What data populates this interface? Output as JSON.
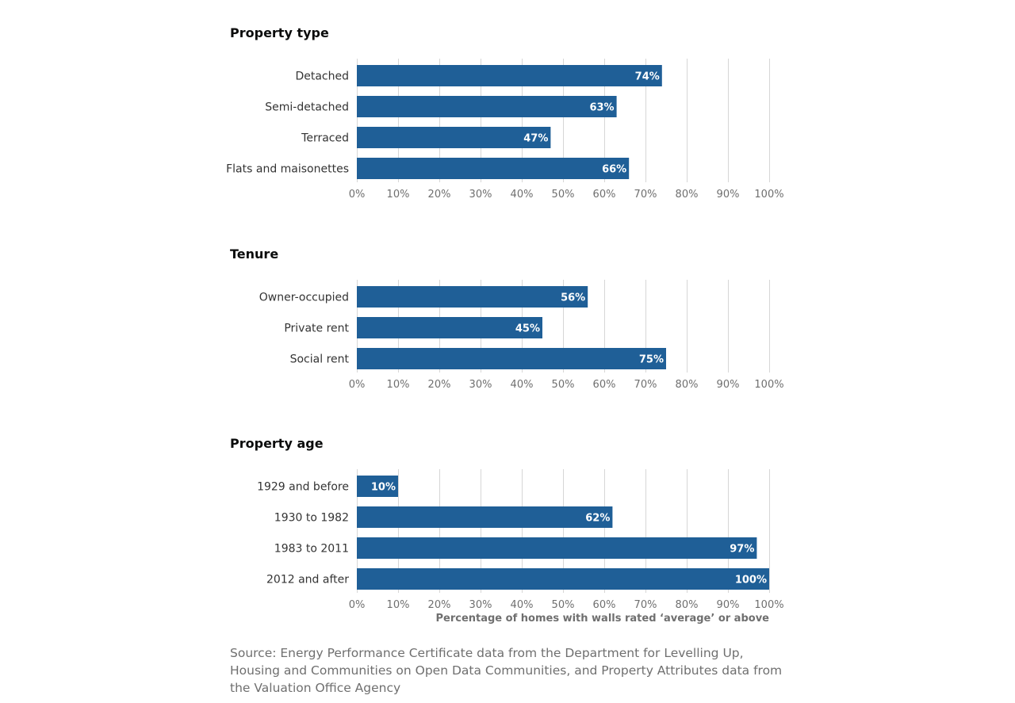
{
  "colors": {
    "bar": "#1f5f97",
    "grid": "#d6d6d6",
    "bar_label": "#ffffff",
    "category_label": "#333333",
    "tick_label": "#6f6f6f"
  },
  "chart_data": [
    {
      "type": "bar",
      "orientation": "horizontal",
      "title": "Property type",
      "categories": [
        "Detached",
        "Semi-detached",
        "Terraced",
        "Flats and maisonettes"
      ],
      "values": [
        74,
        63,
        47,
        66
      ],
      "data_labels": [
        "74%",
        "63%",
        "47%",
        "66%"
      ],
      "xlim": [
        0,
        100
      ],
      "xticks": [
        "0%",
        "10%",
        "20%",
        "30%",
        "40%",
        "50%",
        "60%",
        "70%",
        "80%",
        "90%",
        "100%"
      ],
      "grid": true,
      "xlabel": ""
    },
    {
      "type": "bar",
      "orientation": "horizontal",
      "title": "Tenure",
      "categories": [
        "Owner-occupied",
        "Private rent",
        "Social rent"
      ],
      "values": [
        56,
        45,
        75
      ],
      "data_labels": [
        "56%",
        "45%",
        "75%"
      ],
      "xlim": [
        0,
        100
      ],
      "xticks": [
        "0%",
        "10%",
        "20%",
        "30%",
        "40%",
        "50%",
        "60%",
        "70%",
        "80%",
        "90%",
        "100%"
      ],
      "grid": true,
      "xlabel": ""
    },
    {
      "type": "bar",
      "orientation": "horizontal",
      "title": "Property age",
      "categories": [
        "1929 and before",
        "1930 to 1982",
        "1983 to 2011",
        "2012 and after"
      ],
      "values": [
        10,
        62,
        97,
        100
      ],
      "data_labels": [
        "10%",
        "62%",
        "97%",
        "100%"
      ],
      "xlim": [
        0,
        100
      ],
      "xticks": [
        "0%",
        "10%",
        "20%",
        "30%",
        "40%",
        "50%",
        "60%",
        "70%",
        "80%",
        "90%",
        "100%"
      ],
      "grid": true,
      "xlabel": "Percentage of homes with walls rated ‘average’ or above"
    }
  ],
  "source": "Source: Energy Performance Certificate data from the Department for Levelling Up, Housing and Communities on Open Data Communities, and Property Attributes data from the Valuation Office Agency"
}
